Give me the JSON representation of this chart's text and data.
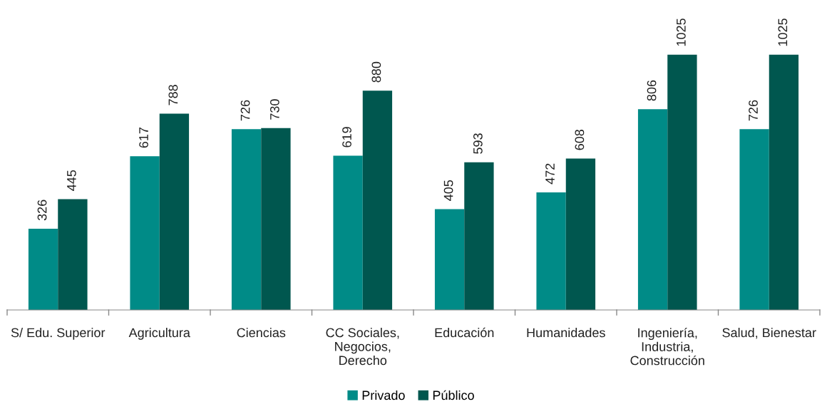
{
  "chart_data": {
    "type": "bar",
    "categories": [
      "S/ Edu. Superior",
      "Agricultura",
      "Ciencias",
      "CC Sociales,\nNegocios,\nDerecho",
      "Educación",
      "Humanidades",
      "Ingeniería,\nIndustria,\nConstrucción",
      "Salud, Bienestar"
    ],
    "series": [
      {
        "name": "Privado",
        "color": "#008b87",
        "values": [
          326,
          617,
          726,
          619,
          405,
          472,
          806,
          726
        ]
      },
      {
        "name": "Público",
        "color": "#00574f",
        "values": [
          445,
          788,
          730,
          880,
          593,
          608,
          1025,
          1025
        ]
      }
    ],
    "data_labels": true,
    "grid": false,
    "legend": "bottom"
  }
}
